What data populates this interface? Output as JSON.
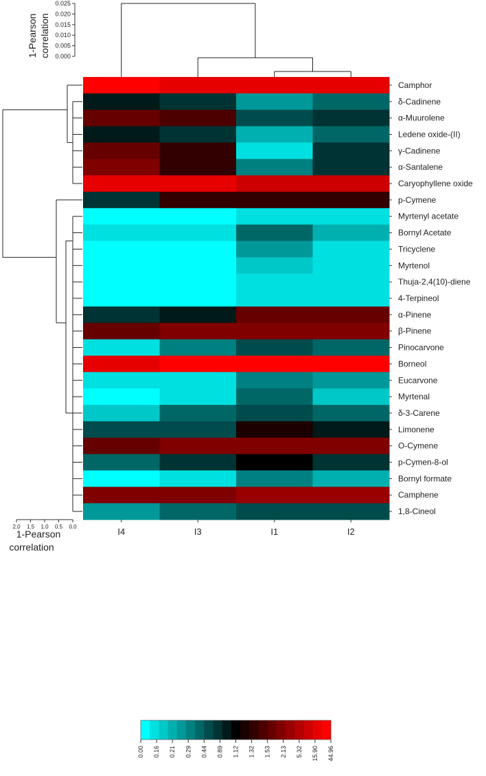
{
  "chart_data": {
    "type": "heatmap",
    "columns": [
      "I4",
      "I3",
      "I1",
      "I2"
    ],
    "rows": [
      "Camphor",
      "δ-Cadinene",
      "α-Muurolene",
      "Ledene oxide-(II)",
      "γ-Cadinene",
      "α-Santalene",
      "Caryophyllene oxide",
      "p-Cymene",
      "Myrtenyl acetate",
      "Bornyl Acetate",
      "Tricyclene",
      "Myrtenol",
      "Thuja-2,4(10)-diene",
      "4-Terpineol",
      "α-Pinene",
      "β-Pinene",
      "Pinocarvone",
      "Borneol",
      "Eucarvone",
      "Myrtenal",
      "δ-3-Carene",
      "Limonene",
      "O-Cymene",
      "p-Cymen-8-ol",
      "Bornyl formate",
      "Camphene",
      "1,8-Cineol"
    ],
    "values": [
      [
        40.0,
        32.0,
        30.0,
        28.0
      ],
      [
        0.95,
        0.75,
        0.22,
        0.35
      ],
      [
        1.9,
        1.5,
        0.66,
        0.78
      ],
      [
        1.0,
        0.68,
        0.2,
        0.42
      ],
      [
        1.9,
        1.4,
        0.1,
        0.72
      ],
      [
        2.0,
        1.4,
        0.27,
        0.7
      ],
      [
        30.0,
        20.0,
        17.0,
        15.0
      ],
      [
        0.85,
        1.4,
        1.3,
        1.3
      ],
      [
        0.0,
        0.0,
        0.08,
        0.05
      ],
      [
        0.1,
        0.12,
        0.4,
        0.2
      ],
      [
        0.0,
        0.0,
        0.23,
        0.14
      ],
      [
        0.0,
        0.0,
        0.17,
        0.06
      ],
      [
        0.0,
        0.0,
        0.11,
        0.05
      ],
      [
        0.0,
        0.0,
        0.11,
        0.05
      ],
      [
        0.75,
        0.95,
        1.6,
        1.6
      ],
      [
        1.8,
        2.0,
        2.6,
        2.4
      ],
      [
        0.13,
        0.33,
        0.5,
        0.42
      ],
      [
        35.0,
        38.0,
        44.96,
        44.96
      ],
      [
        0.06,
        0.13,
        0.32,
        0.24
      ],
      [
        0.0,
        0.1,
        0.35,
        0.17
      ],
      [
        0.17,
        0.38,
        0.5,
        0.4
      ],
      [
        0.5,
        0.62,
        1.2,
        0.95
      ],
      [
        1.9,
        2.2,
        2.6,
        2.8
      ],
      [
        0.38,
        0.78,
        1.1,
        0.9
      ],
      [
        0.0,
        0.12,
        0.27,
        0.2
      ],
      [
        2.4,
        2.8,
        3.2,
        3.2
      ],
      [
        0.23,
        0.36,
        0.5,
        0.46
      ]
    ],
    "colorbar": {
      "ticks": [
        "0.00",
        "0.16",
        "0.21",
        "0.29",
        "0.44",
        "0.89",
        "1.12",
        "1.32",
        "1.53",
        "2.13",
        "5.32",
        "15.90",
        "44.96"
      ],
      "colors": [
        "#00ffff",
        "#00e0e0",
        "#00c8c8",
        "#00b0b0",
        "#009898",
        "#008080",
        "#006666",
        "#004c4c",
        "#003333",
        "#001a1a",
        "#000000",
        "#1a0000",
        "#330000",
        "#4c0000",
        "#660000",
        "#800000",
        "#990000",
        "#b30000",
        "#cc0000",
        "#e60000",
        "#ff0000"
      ]
    },
    "col_dendrogram": {
      "ylabel": "1-Pearson\ncorrelation",
      "ticks": [
        "0.000",
        "0.005",
        "0.010",
        "0.015",
        "0.020",
        "0.025"
      ],
      "ylim": [
        0,
        0.025
      ]
    },
    "row_dendrogram": {
      "xlabel": "1-Pearson\ncorrelation",
      "ticks": [
        "2.0",
        "1.5",
        "1.0",
        "0.5",
        "0.0"
      ],
      "xlim": [
        2.0,
        0.0
      ]
    }
  }
}
